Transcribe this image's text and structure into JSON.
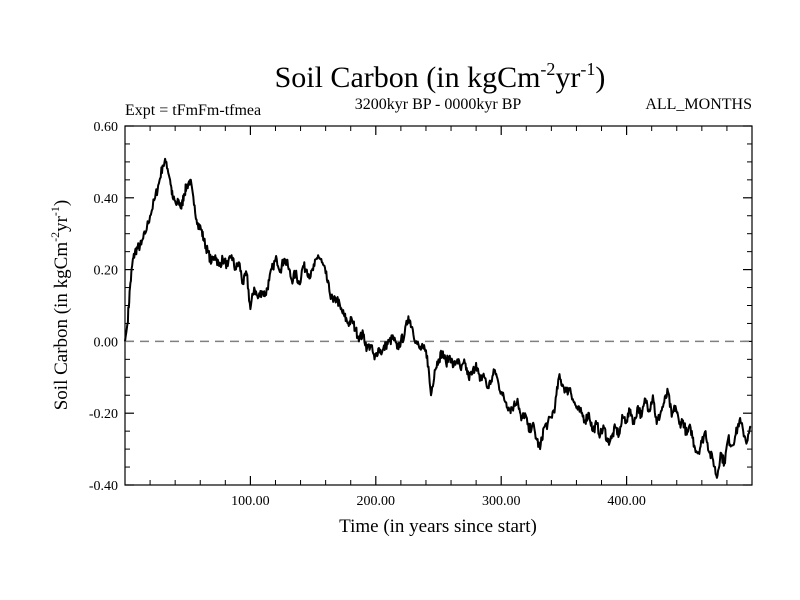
{
  "chart_data": {
    "type": "line",
    "title": {
      "main": "Soil Carbon (in kgCm",
      "sup1": "-2",
      "mid": "yr",
      "sup2": "-1",
      "end": ")"
    },
    "subtitle_left": "Expt = tFmFm-tfmea",
    "subtitle_center": "3200kyr BP - 0000kyr BP",
    "subtitle_right": "ALL_MONTHS",
    "xlabel": "Time (in years since start)",
    "ylabel": {
      "main": "Soil Carbon (in kgCm",
      "sup1": "-2",
      "mid": "yr",
      "sup2": "-1",
      "end": ")"
    },
    "xlim": [
      0,
      500
    ],
    "ylim": [
      -0.4,
      0.6
    ],
    "x_major_ticks": [
      100,
      200,
      300,
      400
    ],
    "x_tick_labels": [
      "100.00",
      "200.00",
      "300.00",
      "400.00"
    ],
    "y_major_ticks": [
      -0.4,
      -0.2,
      0.0,
      0.2,
      0.4,
      0.6
    ],
    "y_tick_labels": [
      "-0.40",
      "-0.20",
      "0.00",
      "0.20",
      "0.40",
      "0.60"
    ],
    "reference_line": {
      "y": 0.0,
      "style": "dashed",
      "color": "#808080"
    },
    "series": [
      {
        "name": "Soil Carbon",
        "color": "#000000",
        "x": [
          0,
          2,
          4,
          6,
          8,
          10,
          13,
          16,
          20,
          24,
          27,
          30,
          33,
          36,
          38,
          41,
          43,
          45,
          47,
          49,
          52,
          55,
          58,
          61,
          63,
          66,
          69,
          72,
          75,
          78,
          82,
          85,
          88,
          91,
          94,
          97,
          100,
          103,
          106,
          109,
          112,
          115,
          118,
          121,
          124,
          127,
          130,
          133,
          136,
          139,
          142,
          145,
          148,
          151,
          154,
          157,
          160,
          163,
          166,
          169,
          172,
          175,
          178,
          181,
          184,
          187,
          190,
          193,
          196,
          199,
          202,
          205,
          208,
          211,
          214,
          217,
          220,
          223,
          226,
          229,
          232,
          235,
          238,
          241,
          244,
          247,
          250,
          253,
          256,
          259,
          262,
          265,
          268,
          271,
          274,
          277,
          280,
          283,
          286,
          289,
          292,
          295,
          298,
          301,
          304,
          307,
          310,
          313,
          316,
          319,
          322,
          325,
          328,
          331,
          334,
          337,
          340,
          343,
          346,
          349,
          352,
          355,
          358,
          361,
          364,
          367,
          370,
          373,
          376,
          379,
          382,
          385,
          388,
          391,
          394,
          397,
          400,
          403,
          406,
          409,
          412,
          415,
          418,
          421,
          424,
          427,
          430,
          433,
          436,
          439,
          442,
          445,
          448,
          451,
          454,
          457,
          460,
          463,
          466,
          469,
          472,
          475,
          478,
          481,
          484,
          487,
          490,
          493,
          496,
          499
        ],
        "y": [
          0.0,
          0.05,
          0.15,
          0.22,
          0.25,
          0.26,
          0.27,
          0.3,
          0.35,
          0.4,
          0.44,
          0.49,
          0.5,
          0.45,
          0.4,
          0.38,
          0.39,
          0.37,
          0.41,
          0.43,
          0.45,
          0.38,
          0.33,
          0.31,
          0.28,
          0.25,
          0.22,
          0.24,
          0.21,
          0.23,
          0.21,
          0.24,
          0.2,
          0.22,
          0.16,
          0.19,
          0.09,
          0.15,
          0.12,
          0.14,
          0.13,
          0.17,
          0.21,
          0.23,
          0.2,
          0.23,
          0.21,
          0.17,
          0.19,
          0.16,
          0.21,
          0.2,
          0.18,
          0.21,
          0.24,
          0.22,
          0.19,
          0.14,
          0.11,
          0.12,
          0.09,
          0.07,
          0.05,
          0.06,
          0.03,
          0.01,
          0.02,
          -0.02,
          -0.01,
          -0.05,
          -0.02,
          -0.03,
          -0.01,
          0.0,
          0.01,
          -0.02,
          0.0,
          0.02,
          0.07,
          0.04,
          0.0,
          -0.02,
          -0.02,
          -0.04,
          -0.15,
          -0.08,
          -0.05,
          -0.03,
          -0.06,
          -0.04,
          -0.07,
          -0.05,
          -0.08,
          -0.06,
          -0.1,
          -0.09,
          -0.06,
          -0.11,
          -0.09,
          -0.13,
          -0.11,
          -0.08,
          -0.12,
          -0.15,
          -0.17,
          -0.19,
          -0.18,
          -0.16,
          -0.22,
          -0.2,
          -0.25,
          -0.23,
          -0.27,
          -0.3,
          -0.24,
          -0.23,
          -0.21,
          -0.18,
          -0.1,
          -0.12,
          -0.14,
          -0.13,
          -0.17,
          -0.19,
          -0.2,
          -0.22,
          -0.2,
          -0.25,
          -0.23,
          -0.26,
          -0.24,
          -0.28,
          -0.27,
          -0.24,
          -0.26,
          -0.21,
          -0.22,
          -0.19,
          -0.23,
          -0.18,
          -0.21,
          -0.16,
          -0.19,
          -0.15,
          -0.23,
          -0.2,
          -0.17,
          -0.14,
          -0.21,
          -0.18,
          -0.23,
          -0.22,
          -0.26,
          -0.24,
          -0.29,
          -0.31,
          -0.28,
          -0.25,
          -0.31,
          -0.33,
          -0.38,
          -0.31,
          -0.34,
          -0.27,
          -0.29,
          -0.26,
          -0.22,
          -0.25,
          -0.28,
          -0.24
        ]
      }
    ]
  }
}
